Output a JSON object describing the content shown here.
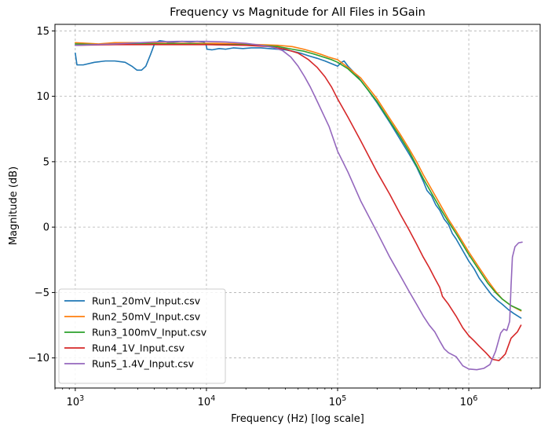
{
  "chart_data": {
    "type": "line",
    "title": "Frequency vs Magnitude for All Files in 5Gain",
    "xlabel": "Frequency (Hz) [log scale]",
    "ylabel": "Magnitude (dB)",
    "x_scale": "log",
    "xlim": [
      700,
      3500000
    ],
    "ylim": [
      -12.3,
      15.5
    ],
    "x_ticks": [
      {
        "value": 1000,
        "base": "10",
        "exp": "3"
      },
      {
        "value": 10000,
        "base": "10",
        "exp": "4"
      },
      {
        "value": 100000,
        "base": "10",
        "exp": "5"
      },
      {
        "value": 1000000,
        "base": "10",
        "exp": "6"
      }
    ],
    "y_ticks": [
      {
        "value": 15,
        "label": "15"
      },
      {
        "value": 10,
        "label": "10"
      },
      {
        "value": 5,
        "label": "5"
      },
      {
        "value": 0,
        "label": "0"
      },
      {
        "value": -5,
        "label": "−5"
      },
      {
        "value": -10,
        "label": "−10"
      }
    ],
    "grid": true,
    "legend_position": "lower-left",
    "series": [
      {
        "name": "Run1_20mV_Input.csv",
        "color": "#1f77b4",
        "points": [
          [
            1000,
            13.3
          ],
          [
            1030,
            12.4
          ],
          [
            1150,
            12.4
          ],
          [
            1400,
            12.6
          ],
          [
            1700,
            12.7
          ],
          [
            2000,
            12.7
          ],
          [
            2400,
            12.6
          ],
          [
            2700,
            12.3
          ],
          [
            2950,
            12.0
          ],
          [
            3200,
            12.0
          ],
          [
            3450,
            12.3
          ],
          [
            3750,
            13.2
          ],
          [
            4050,
            14.1
          ],
          [
            4400,
            14.25
          ],
          [
            4800,
            14.2
          ],
          [
            5200,
            14.1
          ],
          [
            5800,
            14.15
          ],
          [
            6500,
            14.2
          ],
          [
            7500,
            14.15
          ],
          [
            8500,
            14.2
          ],
          [
            9500,
            14.15
          ],
          [
            9900,
            14.0
          ],
          [
            10100,
            13.6
          ],
          [
            11000,
            13.55
          ],
          [
            12500,
            13.65
          ],
          [
            14000,
            13.6
          ],
          [
            16000,
            13.7
          ],
          [
            19000,
            13.65
          ],
          [
            22000,
            13.7
          ],
          [
            26000,
            13.7
          ],
          [
            30000,
            13.65
          ],
          [
            35000,
            13.6
          ],
          [
            40000,
            13.55
          ],
          [
            45000,
            13.45
          ],
          [
            52000,
            13.3
          ],
          [
            60000,
            13.1
          ],
          [
            70000,
            12.9
          ],
          [
            80000,
            12.7
          ],
          [
            92000,
            12.45
          ],
          [
            100000,
            12.3
          ],
          [
            107000,
            12.6
          ],
          [
            112000,
            12.7
          ],
          [
            120000,
            12.3
          ],
          [
            140000,
            11.6
          ],
          [
            170000,
            10.5
          ],
          [
            200000,
            9.5
          ],
          [
            250000,
            8.0
          ],
          [
            300000,
            6.7
          ],
          [
            350000,
            5.6
          ],
          [
            400000,
            4.6
          ],
          [
            450000,
            3.5
          ],
          [
            480000,
            2.8
          ],
          [
            520000,
            2.4
          ],
          [
            560000,
            1.7
          ],
          [
            600000,
            1.3
          ],
          [
            650000,
            0.6
          ],
          [
            700000,
            0.2
          ],
          [
            750000,
            -0.5
          ],
          [
            800000,
            -0.9
          ],
          [
            900000,
            -1.8
          ],
          [
            1000000,
            -2.6
          ],
          [
            1100000,
            -3.2
          ],
          [
            1200000,
            -3.9
          ],
          [
            1350000,
            -4.6
          ],
          [
            1500000,
            -5.2
          ],
          [
            1650000,
            -5.6
          ],
          [
            1800000,
            -5.9
          ],
          [
            2000000,
            -6.3
          ],
          [
            2200000,
            -6.6
          ],
          [
            2500000,
            -6.95
          ]
        ]
      },
      {
        "name": "Run2_50mV_Input.csv",
        "color": "#ff7f0e",
        "points": [
          [
            1000,
            14.1
          ],
          [
            1500,
            14.0
          ],
          [
            2000,
            14.1
          ],
          [
            3000,
            14.1
          ],
          [
            5000,
            14.05
          ],
          [
            8000,
            14.05
          ],
          [
            12000,
            14.05
          ],
          [
            18000,
            14.0
          ],
          [
            25000,
            13.95
          ],
          [
            35000,
            13.9
          ],
          [
            45000,
            13.8
          ],
          [
            55000,
            13.6
          ],
          [
            65000,
            13.4
          ],
          [
            75000,
            13.2
          ],
          [
            85000,
            13.0
          ],
          [
            100000,
            12.8
          ],
          [
            120000,
            12.2
          ],
          [
            150000,
            11.4
          ],
          [
            200000,
            9.8
          ],
          [
            250000,
            8.3
          ],
          [
            300000,
            7.1
          ],
          [
            350000,
            6.0
          ],
          [
            400000,
            5.0
          ],
          [
            450000,
            4.0
          ],
          [
            500000,
            3.2
          ],
          [
            600000,
            1.8
          ],
          [
            700000,
            0.6
          ],
          [
            800000,
            -0.3
          ],
          [
            1000000,
            -1.9
          ],
          [
            1200000,
            -3.1
          ],
          [
            1400000,
            -4.1
          ],
          [
            1600000,
            -4.9
          ],
          [
            1800000,
            -5.5
          ],
          [
            2100000,
            -6.0
          ],
          [
            2500000,
            -6.4
          ]
        ]
      },
      {
        "name": "Run3_100mV_Input.csv",
        "color": "#2ca02c",
        "points": [
          [
            1000,
            14.0
          ],
          [
            1500,
            13.95
          ],
          [
            2000,
            14.0
          ],
          [
            3000,
            14.0
          ],
          [
            5000,
            14.0
          ],
          [
            8000,
            14.0
          ],
          [
            12000,
            13.95
          ],
          [
            18000,
            13.95
          ],
          [
            25000,
            13.9
          ],
          [
            35000,
            13.8
          ],
          [
            45000,
            13.6
          ],
          [
            55000,
            13.45
          ],
          [
            65000,
            13.25
          ],
          [
            75000,
            13.05
          ],
          [
            90000,
            12.8
          ],
          [
            100000,
            12.6
          ],
          [
            120000,
            12.1
          ],
          [
            150000,
            11.2
          ],
          [
            200000,
            9.6
          ],
          [
            250000,
            8.1
          ],
          [
            300000,
            6.9
          ],
          [
            350000,
            5.8
          ],
          [
            400000,
            4.7
          ],
          [
            450000,
            3.7
          ],
          [
            500000,
            2.9
          ],
          [
            600000,
            1.5
          ],
          [
            700000,
            0.4
          ],
          [
            800000,
            -0.5
          ],
          [
            1000000,
            -2.1
          ],
          [
            1200000,
            -3.3
          ],
          [
            1400000,
            -4.3
          ],
          [
            1600000,
            -5.0
          ],
          [
            1800000,
            -5.5
          ],
          [
            2100000,
            -6.0
          ],
          [
            2500000,
            -6.35
          ]
        ]
      },
      {
        "name": "Run4_1V_Input.csv",
        "color": "#d62728",
        "points": [
          [
            1000,
            13.9
          ],
          [
            2000,
            13.95
          ],
          [
            5000,
            13.95
          ],
          [
            10000,
            13.95
          ],
          [
            20000,
            13.9
          ],
          [
            30000,
            13.8
          ],
          [
            40000,
            13.6
          ],
          [
            50000,
            13.3
          ],
          [
            60000,
            12.8
          ],
          [
            70000,
            12.2
          ],
          [
            80000,
            11.5
          ],
          [
            90000,
            10.7
          ],
          [
            100000,
            9.8
          ],
          [
            120000,
            8.4
          ],
          [
            150000,
            6.6
          ],
          [
            200000,
            4.2
          ],
          [
            250000,
            2.5
          ],
          [
            300000,
            1.0
          ],
          [
            350000,
            -0.2
          ],
          [
            400000,
            -1.3
          ],
          [
            450000,
            -2.3
          ],
          [
            500000,
            -3.1
          ],
          [
            550000,
            -3.9
          ],
          [
            600000,
            -4.6
          ],
          [
            630000,
            -5.3
          ],
          [
            700000,
            -5.9
          ],
          [
            800000,
            -6.8
          ],
          [
            900000,
            -7.7
          ],
          [
            1000000,
            -8.3
          ],
          [
            1100000,
            -8.7
          ],
          [
            1200000,
            -9.1
          ],
          [
            1350000,
            -9.6
          ],
          [
            1500000,
            -10.1
          ],
          [
            1700000,
            -10.2
          ],
          [
            1900000,
            -9.7
          ],
          [
            2100000,
            -8.5
          ],
          [
            2350000,
            -8.0
          ],
          [
            2500000,
            -7.5
          ]
        ]
      },
      {
        "name": "Run5_1.4V_Input.csv",
        "color": "#9467bd",
        "points": [
          [
            1000,
            13.9
          ],
          [
            2000,
            14.0
          ],
          [
            4000,
            14.15
          ],
          [
            6000,
            14.2
          ],
          [
            8000,
            14.2
          ],
          [
            10000,
            14.2
          ],
          [
            14000,
            14.15
          ],
          [
            20000,
            14.05
          ],
          [
            26000,
            13.9
          ],
          [
            32000,
            13.75
          ],
          [
            38000,
            13.5
          ],
          [
            44000,
            13.0
          ],
          [
            50000,
            12.3
          ],
          [
            56000,
            11.5
          ],
          [
            62000,
            10.7
          ],
          [
            70000,
            9.6
          ],
          [
            78000,
            8.6
          ],
          [
            86000,
            7.7
          ],
          [
            100000,
            5.8
          ],
          [
            120000,
            4.2
          ],
          [
            150000,
            2.0
          ],
          [
            200000,
            -0.4
          ],
          [
            250000,
            -2.3
          ],
          [
            300000,
            -3.7
          ],
          [
            350000,
            -4.9
          ],
          [
            400000,
            -5.9
          ],
          [
            450000,
            -6.8
          ],
          [
            500000,
            -7.5
          ],
          [
            550000,
            -8.0
          ],
          [
            600000,
            -8.7
          ],
          [
            650000,
            -9.3
          ],
          [
            700000,
            -9.6
          ],
          [
            800000,
            -9.9
          ],
          [
            900000,
            -10.6
          ],
          [
            1000000,
            -10.85
          ],
          [
            1150000,
            -10.9
          ],
          [
            1300000,
            -10.8
          ],
          [
            1450000,
            -10.5
          ],
          [
            1600000,
            -9.5
          ],
          [
            1750000,
            -8.1
          ],
          [
            1850000,
            -7.8
          ],
          [
            1950000,
            -7.9
          ],
          [
            2050000,
            -7.2
          ],
          [
            2100000,
            -4.5
          ],
          [
            2150000,
            -2.3
          ],
          [
            2250000,
            -1.5
          ],
          [
            2400000,
            -1.2
          ],
          [
            2550000,
            -1.15
          ]
        ]
      }
    ]
  }
}
